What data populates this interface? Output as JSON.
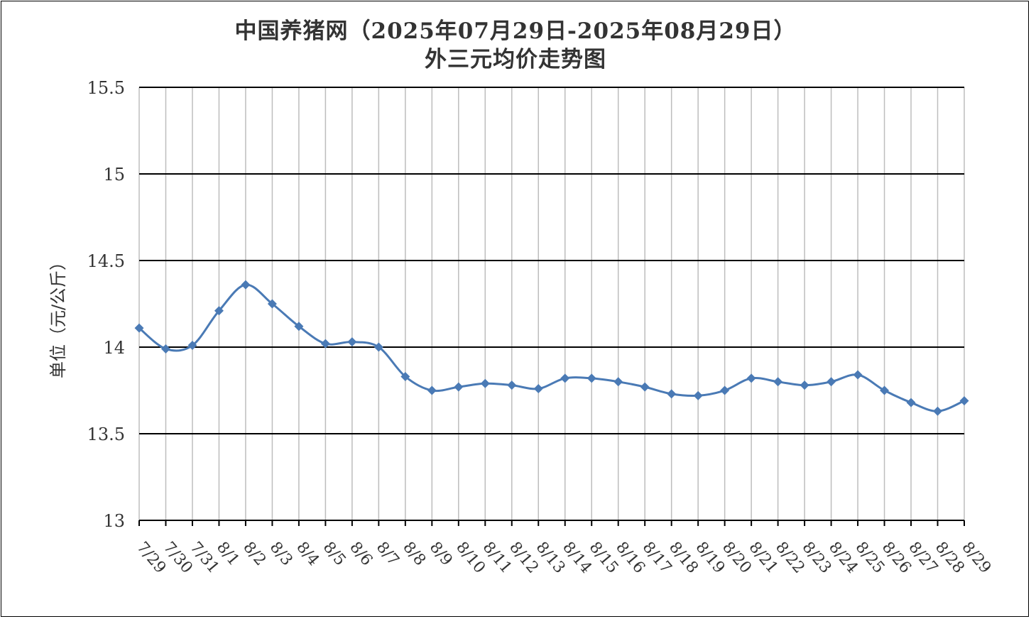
{
  "chart_data": {
    "type": "line",
    "title": "中国养猪网（2025年07月29日-2025年08月29日）",
    "subtitle": "外三元均价走势图",
    "ylabel": "单位（元/公斤）",
    "xlabel": "",
    "ylim": [
      13,
      15.5
    ],
    "yticks": [
      "13",
      "13.5",
      "14",
      "14.5",
      "15",
      "15.5"
    ],
    "categories": [
      "7/29",
      "7/30",
      "7/31",
      "8/1",
      "8/2",
      "8/3",
      "8/4",
      "8/5",
      "8/6",
      "8/7",
      "8/8",
      "8/9",
      "8/10",
      "8/11",
      "8/12",
      "8/13",
      "8/14",
      "8/15",
      "8/16",
      "8/17",
      "8/18",
      "8/19",
      "8/20",
      "8/21",
      "8/22",
      "8/23",
      "8/24",
      "8/25",
      "8/26",
      "8/27",
      "8/28",
      "8/29"
    ],
    "values": [
      14.11,
      13.99,
      14.01,
      14.21,
      14.36,
      14.25,
      14.12,
      14.02,
      14.03,
      14.0,
      13.83,
      13.75,
      13.77,
      13.79,
      13.78,
      13.76,
      13.82,
      13.82,
      13.8,
      13.77,
      13.73,
      13.72,
      13.75,
      13.82,
      13.8,
      13.78,
      13.8,
      13.84,
      13.75,
      13.68,
      13.63,
      13.69
    ],
    "grid": true,
    "line_color": "#4a7ab5"
  }
}
